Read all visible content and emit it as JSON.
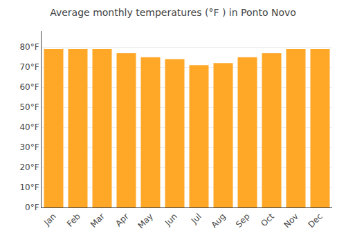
{
  "chart_data": {
    "type": "bar",
    "title": "Average monthly temperatures (°F ) in Ponto Novo",
    "categories": [
      "Jan",
      "Feb",
      "Mar",
      "Apr",
      "May",
      "Jun",
      "Jul",
      "Aug",
      "Sep",
      "Oct",
      "Nov",
      "Dec"
    ],
    "values": [
      79,
      79,
      79,
      77,
      75,
      74,
      71,
      72,
      75,
      77,
      79,
      79
    ],
    "color": "#FFA726",
    "ylim": [
      0,
      88
    ],
    "yticks": [
      {
        "value": 0,
        "label": "0°F"
      },
      {
        "value": 10,
        "label": "10°F"
      },
      {
        "value": 20,
        "label": "20°F"
      },
      {
        "value": 30,
        "label": "30°F"
      },
      {
        "value": 40,
        "label": "40°F"
      },
      {
        "value": 50,
        "label": "50°F"
      },
      {
        "value": 60,
        "label": "60°F"
      },
      {
        "value": 70,
        "label": "70°F"
      },
      {
        "value": 80,
        "label": "80°F"
      }
    ],
    "grid": true
  }
}
